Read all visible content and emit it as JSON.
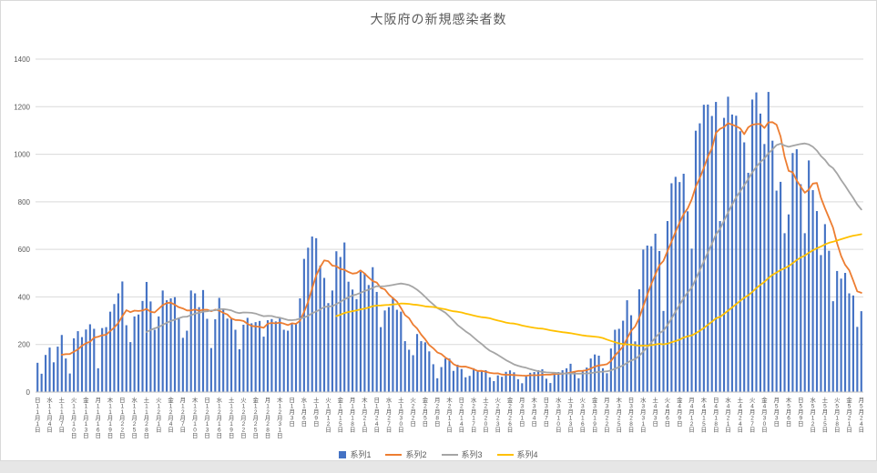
{
  "title": "大阪府の新規感染者数",
  "chart_data": {
    "type": "bar",
    "title": "大阪府の新規感染者数",
    "ylim": [
      0,
      1400
    ],
    "y_tick_step": 200,
    "y_ticks": [
      "0",
      "200",
      "400",
      "600",
      "800",
      "1000",
      "1200",
      "1400"
    ],
    "grid": true,
    "legend_position": "bottom",
    "x_tick_interval_days": 3,
    "x_ticks": {
      "weekdays": [
        "日",
        "水",
        "土",
        "火",
        "金",
        "月",
        "木",
        "日",
        "水",
        "土",
        "火",
        "金",
        "月",
        "木",
        "日",
        "水",
        "土",
        "火",
        "金",
        "月",
        "木",
        "日",
        "水",
        "土",
        "火",
        "金",
        "月",
        "木",
        "日",
        "水",
        "土",
        "火",
        "金",
        "月",
        "木",
        "日",
        "水",
        "土",
        "火",
        "金",
        "月",
        "木",
        "日",
        "水",
        "土",
        "火",
        "金",
        "月",
        "木",
        "日",
        "水",
        "土",
        "火",
        "金",
        "月",
        "木",
        "日",
        "水",
        "土",
        "火",
        "金",
        "月",
        "木",
        "日",
        "水",
        "土",
        "火",
        "金",
        "月"
      ],
      "dates": [
        "11月1日",
        "11月4日",
        "11月7日",
        "11月10日",
        "11月13日",
        "11月16日",
        "11月19日",
        "11月22日",
        "11月25日",
        "11月28日",
        "12月1日",
        "12月4日",
        "12月7日",
        "12月10日",
        "12月13日",
        "12月16日",
        "12月19日",
        "12月22日",
        "12月25日",
        "12月28日",
        "12月31日",
        "1月3日",
        "1月6日",
        "1月9日",
        "1月12日",
        "1月15日",
        "1月18日",
        "1月21日",
        "1月24日",
        "1月27日",
        "1月30日",
        "2月2日",
        "2月5日",
        "2月8日",
        "2月11日",
        "2月14日",
        "2月17日",
        "2月20日",
        "2月23日",
        "2月26日",
        "3月1日",
        "3月4日",
        "3月7日",
        "3月10日",
        "3月13日",
        "3月16日",
        "3月19日",
        "3月22日",
        "3月25日",
        "3月28日",
        "3月31日",
        "4月3日",
        "4月6日",
        "4月9日",
        "4月12日",
        "4月15日",
        "4月18日",
        "4月21日",
        "4月24日",
        "4月27日",
        "4月30日",
        "5月3日",
        "5月6日",
        "5月9日",
        "5月12日",
        "5月15日",
        "5月18日",
        "5月21日",
        "5月24日"
      ]
    },
    "series": [
      {
        "name": "系列1",
        "type": "bar",
        "color": "#4472C4",
        "values": [
          123,
          77,
          156,
          187,
          125,
          191,
          240,
          141,
          78,
          226,
          256,
          231,
          263,
          285,
          266,
          100,
          269,
          273,
          338,
          370,
          415,
          465,
          281,
          210,
          318,
          326,
          383,
          463,
          381,
          262,
          318,
          427,
          386,
          394,
          399,
          310,
          228,
          258,
          427,
          415,
          357,
          429,
          308,
          185,
          306,
          396,
          351,
          309,
          311,
          262,
          180,
          283,
          312,
          289,
          294,
          299,
          233,
          302,
          307,
          297,
          313,
          262,
          258,
          286,
          286,
          394,
          560,
          607,
          654,
          647,
          532,
          480,
          374,
          427,
          592,
          568,
          629,
          464,
          431,
          391,
          506,
          501,
          450,
          525,
          421,
          273,
          343,
          357,
          397,
          346,
          338,
          214,
          178,
          155,
          244,
          214,
          209,
          171,
          117,
          58,
          105,
          141,
          141,
          89,
          115,
          97,
          62,
          68,
          100,
          91,
          91,
          92,
          62,
          46,
          70,
          64,
          85,
          91,
          83,
          54,
          37,
          65,
          81,
          84,
          92,
          96,
          56,
          38,
          84,
          84,
          92,
          100,
          119,
          84,
          58,
          86,
          103,
          141,
          158,
          153,
          100,
          79,
          183,
          262,
          266,
          300,
          386,
          323,
          213,
          432,
          599,
          616,
          613,
          666,
          593,
          341,
          719,
          878,
          905,
          883,
          918,
          760,
          603,
          1099,
          1130,
          1208,
          1209,
          1161,
          1220,
          719,
          1153,
          1242,
          1167,
          1162,
          1097,
          1050,
          922,
          1230,
          1260,
          1171,
          1043,
          1262,
          1057,
          847,
          884,
          668,
          747,
          1005,
          1021,
          874,
          668,
          974,
          849,
          761,
          576,
          706,
          594,
          382,
          509,
          477,
          501,
          415,
          406,
          274,
          340
        ]
      },
      {
        "name": "系列2",
        "type": "line",
        "color": "#ED7D31",
        "derived": "moving_average",
        "window": 7
      },
      {
        "name": "系列3",
        "type": "line",
        "color": "#A5A5A5",
        "derived": "moving_average",
        "window": 28
      },
      {
        "name": "系列4",
        "type": "line",
        "color": "#FFC000",
        "derived": "moving_average",
        "window": 75
      }
    ]
  }
}
